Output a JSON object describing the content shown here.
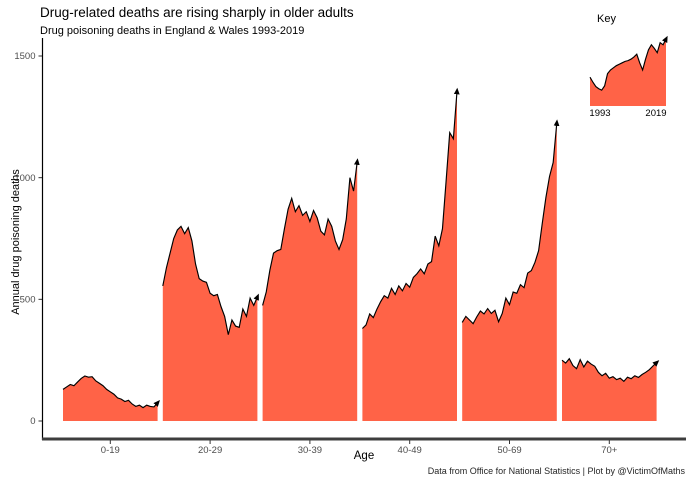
{
  "chart_data": {
    "type": "area",
    "title": "Drug-related deaths are rising sharply in older adults",
    "subtitle": "Drug poisoning deaths in England & Wales 1993-2019",
    "caption": "Data from Office for National Statistics | Plot by @VictimOfMaths",
    "xlabel": "Age",
    "ylabel": "Annual drug poisoning deaths",
    "fill_color": "#FF6347",
    "line_color": "#000000",
    "axis_text_color": "#4d4d4d",
    "x_axis_line_color": "#3d3d3d",
    "y_ticks": [
      0,
      500,
      1000,
      1500
    ],
    "ylim": [
      0,
      1570
    ],
    "years": [
      1993,
      2019
    ],
    "legend_position": "top-right",
    "grid": false,
    "series": [
      {
        "name": "0-19",
        "values": [
          130,
          140,
          150,
          145,
          160,
          175,
          185,
          180,
          182,
          165,
          155,
          145,
          130,
          120,
          110,
          95,
          90,
          80,
          85,
          70,
          60,
          65,
          55,
          65,
          60,
          58,
          75
        ]
      },
      {
        "name": "20-29",
        "values": [
          555,
          630,
          690,
          750,
          785,
          800,
          770,
          795,
          740,
          645,
          585,
          575,
          570,
          525,
          515,
          520,
          470,
          430,
          355,
          415,
          390,
          385,
          460,
          430,
          505,
          475,
          510
        ]
      },
      {
        "name": "30-39",
        "values": [
          475,
          530,
          620,
          690,
          700,
          705,
          790,
          870,
          915,
          860,
          885,
          845,
          860,
          820,
          865,
          835,
          780,
          765,
          830,
          800,
          740,
          705,
          745,
          830,
          1000,
          945,
          1065
        ]
      },
      {
        "name": "40-49",
        "values": [
          380,
          395,
          440,
          425,
          460,
          490,
          515,
          505,
          545,
          520,
          555,
          535,
          565,
          550,
          590,
          605,
          625,
          605,
          645,
          655,
          760,
          720,
          790,
          985,
          1185,
          1160,
          1355
        ]
      },
      {
        "name": "50-69",
        "values": [
          405,
          430,
          415,
          400,
          428,
          452,
          440,
          462,
          442,
          455,
          408,
          442,
          505,
          478,
          530,
          525,
          560,
          548,
          608,
          618,
          652,
          700,
          812,
          918,
          1005,
          1062,
          1225
        ]
      },
      {
        "name": "70+",
        "values": [
          250,
          238,
          256,
          228,
          215,
          252,
          222,
          246,
          234,
          225,
          200,
          186,
          196,
          176,
          182,
          170,
          176,
          163,
          180,
          174,
          186,
          179,
          191,
          200,
          211,
          226,
          240
        ]
      }
    ],
    "key": {
      "label": "Key",
      "start_label": "1993",
      "end_label": "2019",
      "values_normalized": [
        0.4,
        0.33,
        0.27,
        0.24,
        0.22,
        0.28,
        0.45,
        0.5,
        0.53,
        0.56,
        0.58,
        0.6,
        0.62,
        0.63,
        0.65,
        0.68,
        0.72,
        0.6,
        0.5,
        0.65,
        0.78,
        0.85,
        0.8,
        0.74,
        0.88,
        0.85,
        0.93
      ]
    }
  }
}
